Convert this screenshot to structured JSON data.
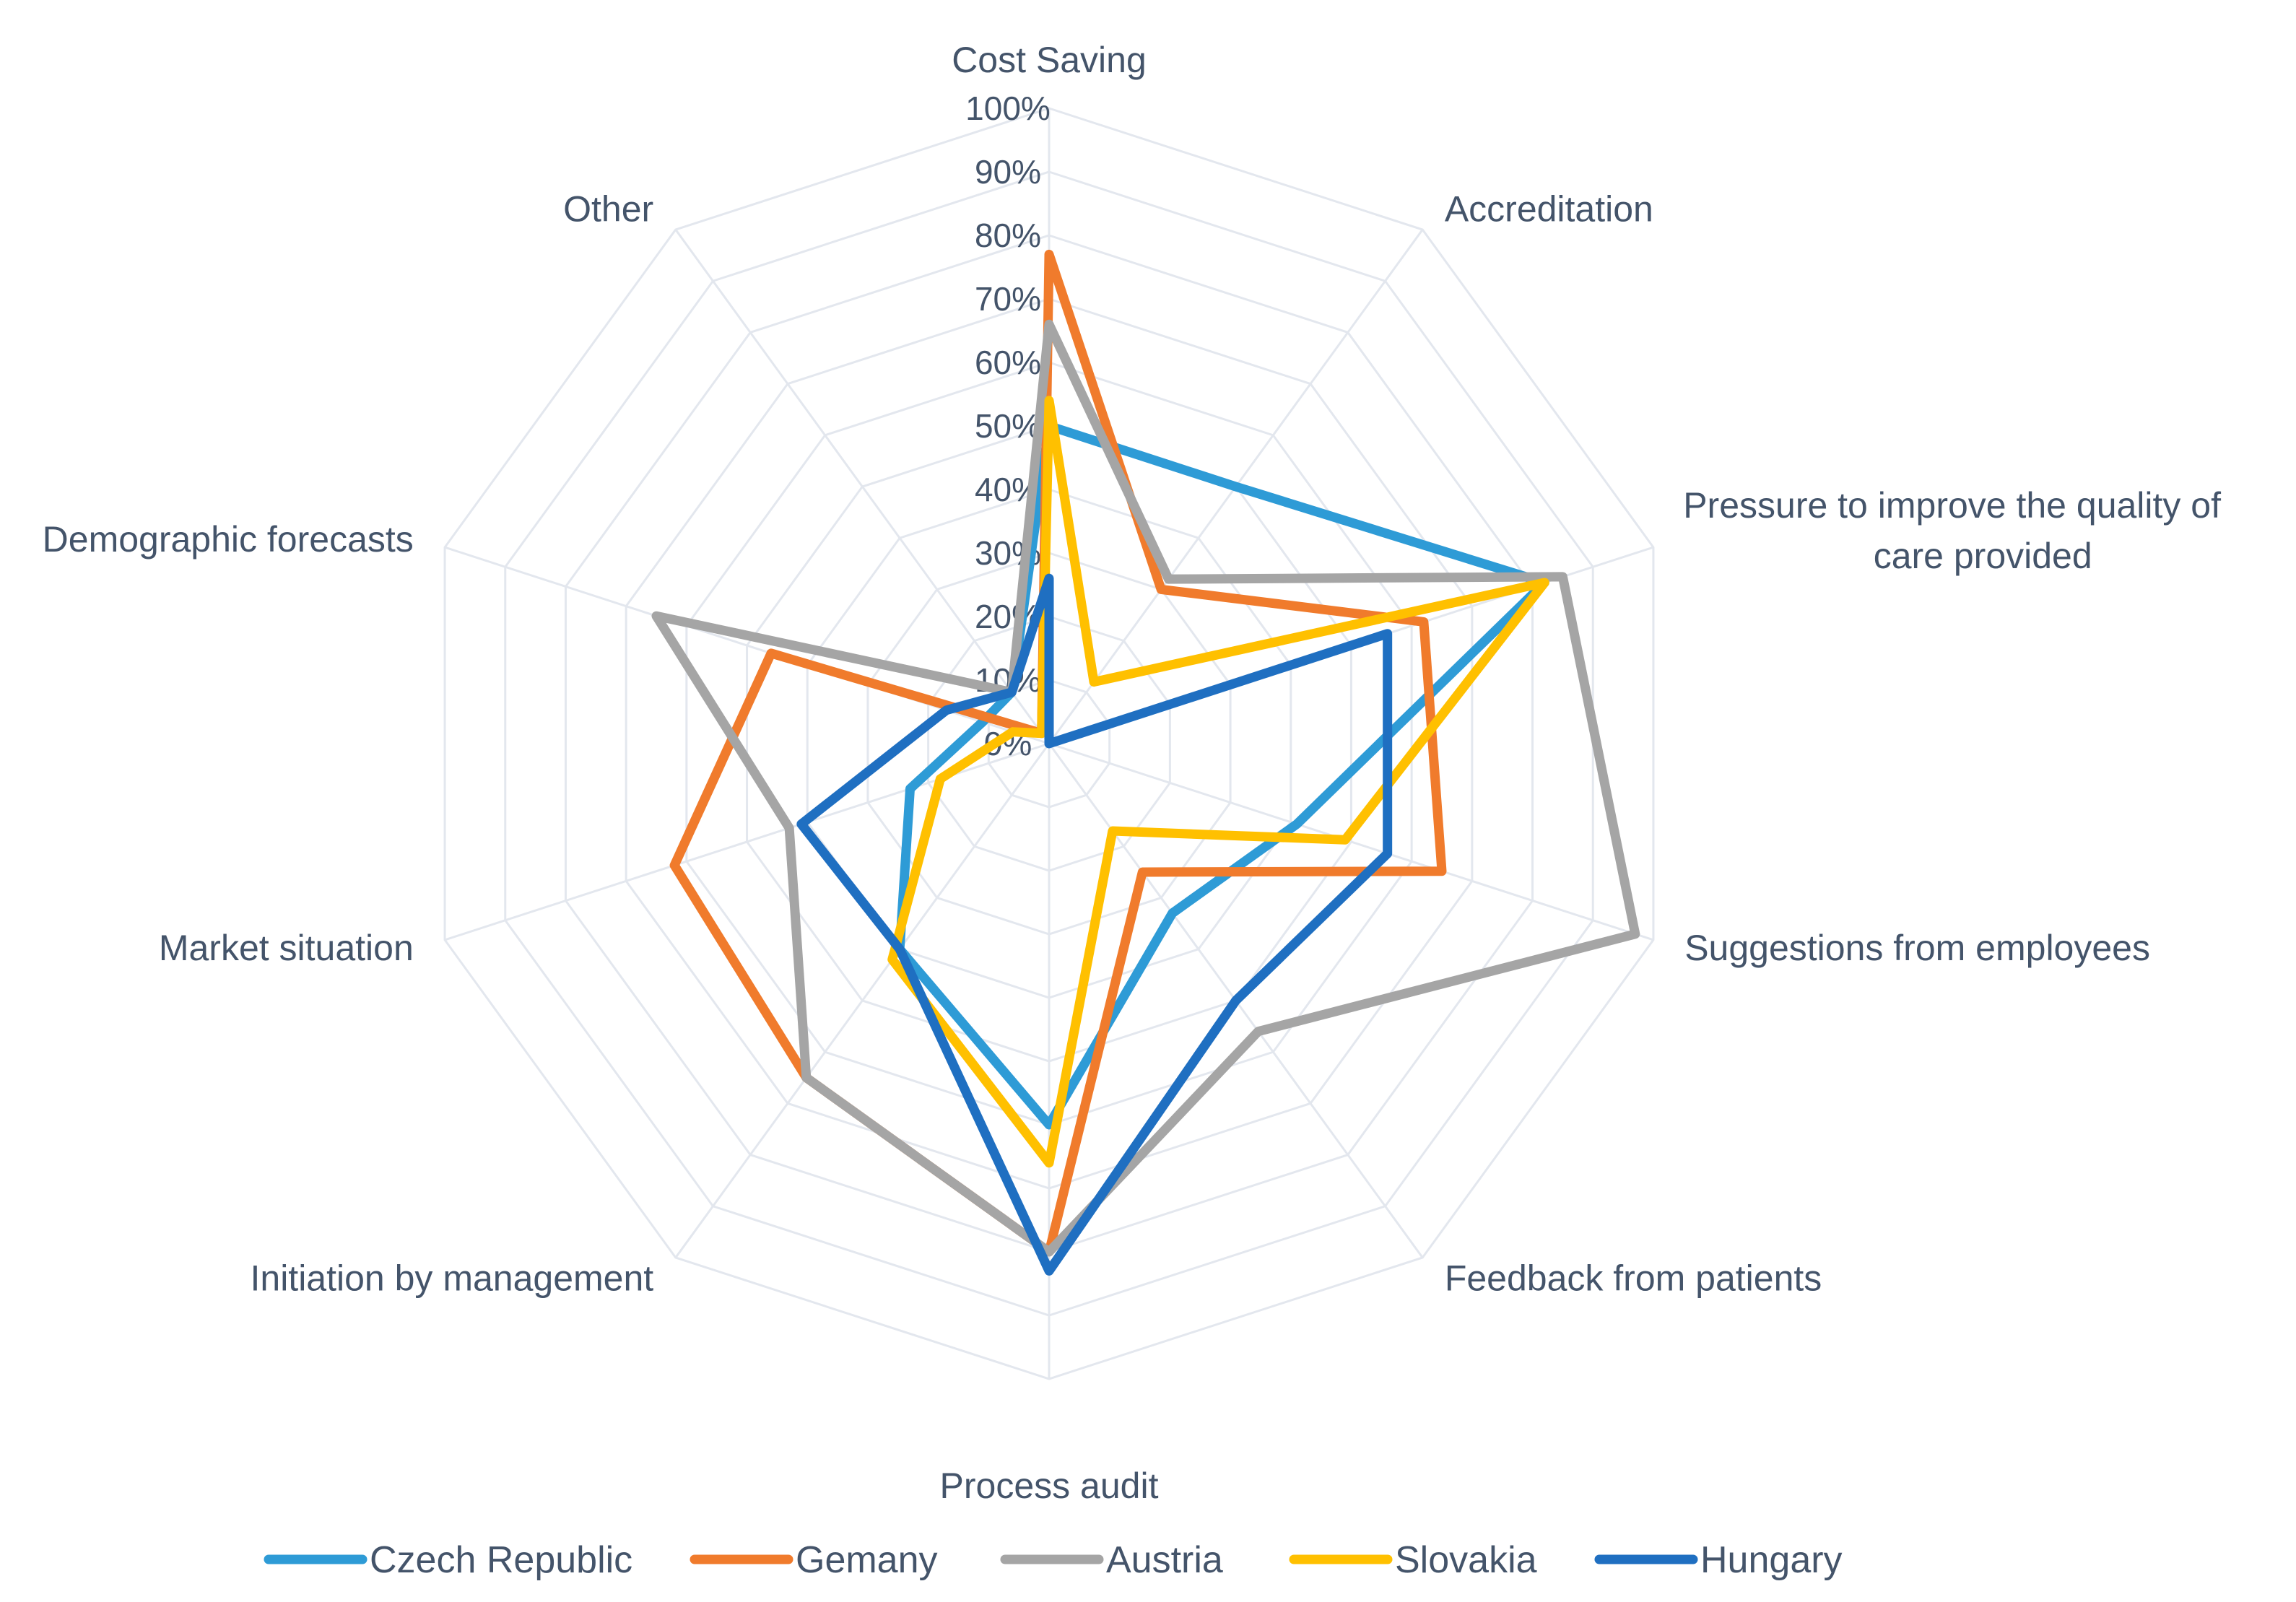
{
  "chart_data": {
    "type": "radar",
    "categories": [
      "Cost Saving",
      "Accreditation",
      "Pressure to improve the quality of care provided",
      "Suggestions from employees",
      "Feedback from patients",
      "Process audit",
      "Initiation by management",
      "Market situation",
      "Demographic forecasts",
      "Other"
    ],
    "category_display": [
      [
        "Cost Saving"
      ],
      [
        "Accreditation"
      ],
      [
        "Pressure to improve the quality of",
        "care provided"
      ],
      [
        "Suggestions from employees"
      ],
      [
        "Feedback from patients"
      ],
      [
        "Process audit"
      ],
      [
        "Initiation by management"
      ],
      [
        "Market situation"
      ],
      [
        "Demographic forecasts"
      ],
      [
        "Other"
      ]
    ],
    "ticks": [
      "0%",
      "10%",
      "20%",
      "30%",
      "40%",
      "50%",
      "60%",
      "70%",
      "80%",
      "90%",
      "100%"
    ],
    "rlim": [
      0,
      100
    ],
    "series": [
      {
        "name": "Czech Republic",
        "color": "#2E9BD6",
        "values": [
          50,
          50,
          82,
          41,
          33,
          60,
          40,
          23,
          11,
          10
        ]
      },
      {
        "name": "Gemany",
        "color": "#F07B2C",
        "values": [
          77,
          30,
          62,
          65,
          25,
          80,
          65,
          62,
          46,
          2
        ]
      },
      {
        "name": "Austria",
        "color": "#A5A5A5",
        "values": [
          66,
          32,
          85,
          97,
          56,
          80,
          65,
          43,
          65,
          10
        ]
      },
      {
        "name": "Slovakia",
        "color": "#FFC000",
        "values": [
          54,
          12,
          82,
          49,
          17,
          66,
          42,
          18,
          6,
          2
        ]
      },
      {
        "name": "Hungary",
        "color": "#1F6FC1",
        "values": [
          26,
          0,
          56,
          56,
          50,
          83,
          40,
          41,
          17,
          10
        ]
      }
    ],
    "legend_position": "bottom"
  }
}
